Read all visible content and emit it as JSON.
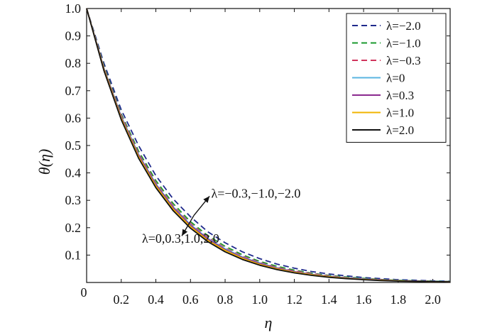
{
  "chart_data": {
    "type": "line",
    "xlabel": "η",
    "ylabel": "θ(η)",
    "xlim": [
      0,
      2.1
    ],
    "ylim": [
      0,
      1.0
    ],
    "x_ticks": [
      0,
      0.2,
      0.4,
      0.6,
      0.8,
      1.0,
      1.2,
      1.4,
      1.6,
      1.8,
      2.0
    ],
    "x_tick_labels": [
      "0",
      "0.2",
      "0.4",
      "0.6",
      "0.8",
      "1.0",
      "1.2",
      "1.4",
      "1.6",
      "1.8",
      "2.0"
    ],
    "y_ticks": [
      0.1,
      0.2,
      0.3,
      0.4,
      0.5,
      0.6,
      0.7,
      0.8,
      0.9,
      1.0
    ],
    "y_tick_labels": [
      "0.1",
      "0.2",
      "0.3",
      "0.4",
      "0.5",
      "0.6",
      "0.7",
      "0.8",
      "0.9",
      "1.0"
    ],
    "grid": false,
    "legend_position": "top-right",
    "x": [
      0,
      0.1,
      0.2,
      0.3,
      0.4,
      0.5,
      0.6,
      0.7,
      0.8,
      0.9,
      1.0,
      1.1,
      1.2,
      1.3,
      1.4,
      1.5,
      1.6,
      1.7,
      1.8,
      1.9,
      2.0,
      2.1
    ],
    "series": [
      {
        "name": "λ=−2.0",
        "color": "#1f2a8c",
        "dash": "dashed",
        "values": [
          1.0,
          0.8,
          0.63,
          0.5,
          0.39,
          0.305,
          0.24,
          0.185,
          0.145,
          0.112,
          0.087,
          0.067,
          0.052,
          0.04,
          0.031,
          0.024,
          0.018,
          0.014,
          0.01,
          0.008,
          0.006,
          0.005
        ]
      },
      {
        "name": "λ=−1.0",
        "color": "#1a9a2e",
        "dash": "dashed",
        "values": [
          1.0,
          0.79,
          0.615,
          0.48,
          0.372,
          0.288,
          0.222,
          0.171,
          0.132,
          0.101,
          0.077,
          0.059,
          0.045,
          0.034,
          0.026,
          0.02,
          0.015,
          0.011,
          0.008,
          0.006,
          0.005,
          0.004
        ]
      },
      {
        "name": "λ=−0.3",
        "color": "#d0345c",
        "dash": "dashed",
        "values": [
          1.0,
          0.785,
          0.61,
          0.472,
          0.364,
          0.28,
          0.215,
          0.165,
          0.126,
          0.096,
          0.073,
          0.055,
          0.042,
          0.032,
          0.024,
          0.018,
          0.013,
          0.01,
          0.007,
          0.005,
          0.004,
          0.003
        ]
      },
      {
        "name": "λ=0",
        "color": "#5ab4e0",
        "dash": "solid",
        "values": [
          1.0,
          0.782,
          0.606,
          0.468,
          0.36,
          0.276,
          0.211,
          0.161,
          0.123,
          0.093,
          0.071,
          0.053,
          0.04,
          0.03,
          0.023,
          0.017,
          0.013,
          0.009,
          0.007,
          0.005,
          0.004,
          0.003
        ]
      },
      {
        "name": "λ=0.3",
        "color": "#8b2a8f",
        "dash": "solid",
        "values": [
          1.0,
          0.78,
          0.603,
          0.465,
          0.357,
          0.273,
          0.208,
          0.158,
          0.12,
          0.091,
          0.069,
          0.052,
          0.039,
          0.029,
          0.022,
          0.016,
          0.012,
          0.009,
          0.006,
          0.005,
          0.003,
          0.002
        ]
      },
      {
        "name": "λ=1.0",
        "color": "#f0b400",
        "dash": "solid",
        "values": [
          1.0,
          0.777,
          0.599,
          0.46,
          0.352,
          0.268,
          0.204,
          0.154,
          0.117,
          0.088,
          0.066,
          0.05,
          0.037,
          0.028,
          0.021,
          0.015,
          0.011,
          0.008,
          0.006,
          0.004,
          0.003,
          0.002
        ]
      },
      {
        "name": "λ=2.0",
        "color": "#111111",
        "dash": "solid",
        "values": [
          1.0,
          0.773,
          0.594,
          0.454,
          0.346,
          0.262,
          0.198,
          0.149,
          0.112,
          0.084,
          0.063,
          0.047,
          0.035,
          0.026,
          0.019,
          0.014,
          0.01,
          0.007,
          0.005,
          0.004,
          0.003,
          0.002
        ]
      }
    ],
    "annotations": [
      {
        "text": "λ=−0.3,−1.0,−2.0",
        "x": 0.72,
        "y": 0.31
      },
      {
        "text": "λ=0,0.3,1.0,2.0",
        "x": 0.32,
        "y": 0.145
      }
    ],
    "arrow": {
      "from": [
        0.62,
        0.245
      ],
      "up_to": [
        0.71,
        0.315
      ],
      "down_to": [
        0.55,
        0.17
      ]
    }
  }
}
